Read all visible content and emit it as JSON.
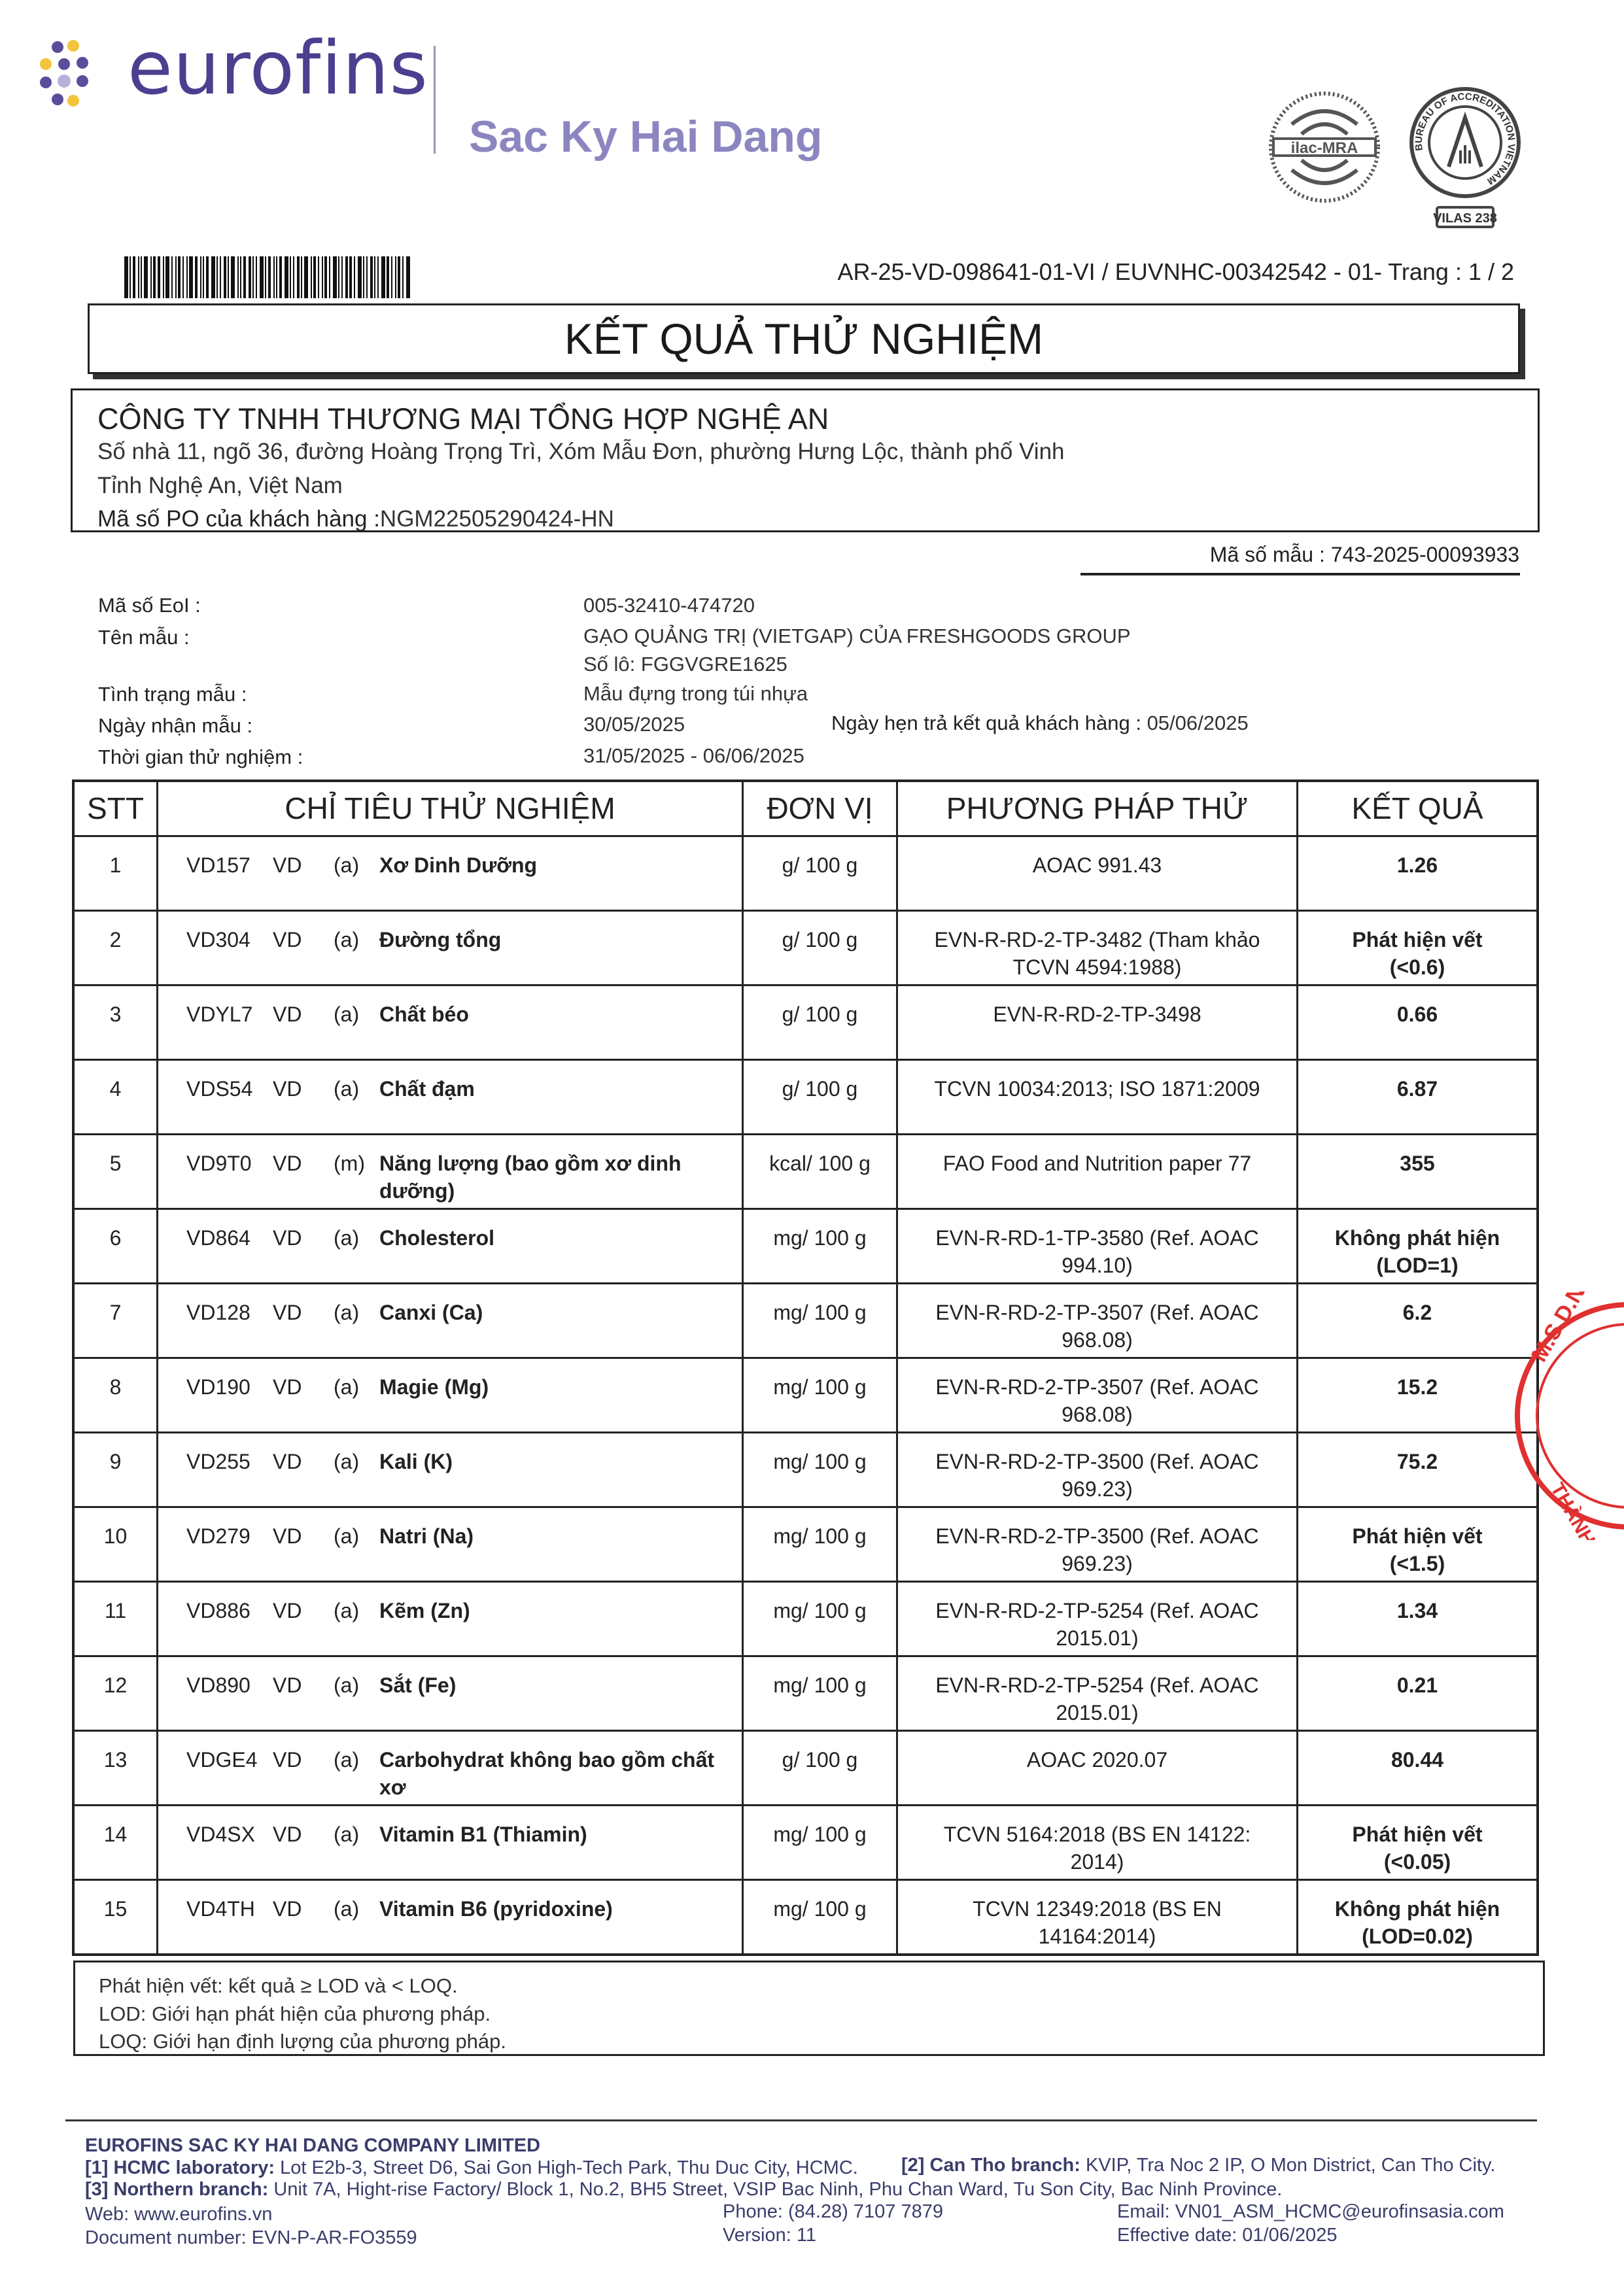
{
  "header": {
    "logo_text": "eurofins",
    "brand_sub": "Sac Ky Hai Dang",
    "accreditation": {
      "ilac": "ilac-MRA",
      "boa": "BUREAU OF ACCREDITATION VIETNAM",
      "vilas": "VILAS 238"
    },
    "reference": "AR-25-VD-098641-01-VI / EUVNHC-00342542 - 01- Trang : 1 / 2"
  },
  "title": "KẾT QUẢ THỬ NGHIỆM",
  "customer": {
    "name": "CÔNG TY TNHH THƯƠNG MẠI TỔNG HỢP NGHỆ AN",
    "address1": "Số nhà 11, ngõ 36, đường Hoàng Trọng Trì, Xóm Mẫu Đơn,  phường Hưng Lộc, thành phố Vinh",
    "address2": "Tỉnh Nghệ An, Việt Nam",
    "po_label": "Mã số PO của khách hàng :",
    "po_value": "NGM22505290424-HN"
  },
  "sample_code": "Mã số mẫu : 743-2025-00093933",
  "info": {
    "eol_label": "Mã số EoI :",
    "eol_value": "005-32410-474720",
    "name_label": "Tên mẫu :",
    "name_value": "GẠO QUẢNG TRỊ (VIETGAP) CỦA FRESHGOODS GROUP",
    "lot_value": "Số lô: FGGVGRE1625",
    "status_label": "Tình trạng mẫu :",
    "status_value": "Mẫu đựng trong túi nhựa",
    "received_label": "Ngày nhận mẫu :",
    "received_value": "30/05/2025",
    "due_label": "Ngày hẹn trả kết quả khách hàng :",
    "due_value": "05/06/2025",
    "period_label": "Thời gian thử nghiệm :",
    "period_value": "31/05/2025 - 06/06/2025"
  },
  "table": {
    "headers": [
      "STT",
      "CHỈ TIÊU THỬ NGHIỆM",
      "ĐƠN VỊ",
      "PHƯƠNG PHÁP THỬ",
      "KẾT QUẢ"
    ],
    "rows": [
      {
        "stt": "1",
        "code": "VD157",
        "lab": "VD",
        "acc": "(a)",
        "name": "Xơ Dinh Dưỡng",
        "unit": "g/ 100 g",
        "method": "AOAC 991.43",
        "result": "1.26"
      },
      {
        "stt": "2",
        "code": "VD304",
        "lab": "VD",
        "acc": "(a)",
        "name": "Đường tổng",
        "unit": "g/ 100 g",
        "method": "EVN-R-RD-2-TP-3482 (Tham khảo TCVN 4594:1988)",
        "result": "Phát hiện vết (<0.6)"
      },
      {
        "stt": "3",
        "code": "VDYL7",
        "lab": "VD",
        "acc": "(a)",
        "name": "Chất béo",
        "unit": "g/ 100 g",
        "method": "EVN-R-RD-2-TP-3498",
        "result": "0.66"
      },
      {
        "stt": "4",
        "code": "VDS54",
        "lab": "VD",
        "acc": "(a)",
        "name": "Chất đạm",
        "unit": "g/ 100 g",
        "method": "TCVN 10034:2013; ISO 1871:2009",
        "result": "6.87"
      },
      {
        "stt": "5",
        "code": "VD9T0",
        "lab": "VD",
        "acc": "(m)",
        "name": "Năng lượng (bao gồm xơ dinh dưỡng)",
        "unit": "kcal/ 100 g",
        "method": "FAO Food and Nutrition paper 77",
        "result": "355"
      },
      {
        "stt": "6",
        "code": "VD864",
        "lab": "VD",
        "acc": "(a)",
        "name": "Cholesterol",
        "unit": "mg/ 100 g",
        "method": "EVN-R-RD-1-TP-3580 (Ref. AOAC 994.10)",
        "result": "Không phát hiện (LOD=1)"
      },
      {
        "stt": "7",
        "code": "VD128",
        "lab": "VD",
        "acc": "(a)",
        "name": "Canxi (Ca)",
        "unit": "mg/ 100 g",
        "method": "EVN-R-RD-2-TP-3507 (Ref. AOAC 968.08)",
        "result": "6.2"
      },
      {
        "stt": "8",
        "code": "VD190",
        "lab": "VD",
        "acc": "(a)",
        "name": "Magie (Mg)",
        "unit": "mg/ 100 g",
        "method": "EVN-R-RD-2-TP-3507 (Ref. AOAC 968.08)",
        "result": "15.2"
      },
      {
        "stt": "9",
        "code": "VD255",
        "lab": "VD",
        "acc": "(a)",
        "name": "Kali (K)",
        "unit": "mg/ 100 g",
        "method": "EVN-R-RD-2-TP-3500 (Ref. AOAC 969.23)",
        "result": "75.2"
      },
      {
        "stt": "10",
        "code": "VD279",
        "lab": "VD",
        "acc": "(a)",
        "name": "Natri (Na)",
        "unit": "mg/ 100 g",
        "method": "EVN-R-RD-2-TP-3500 (Ref. AOAC 969.23)",
        "result": "Phát hiện vết (<1.5)"
      },
      {
        "stt": "11",
        "code": "VD886",
        "lab": "VD",
        "acc": "(a)",
        "name": "Kẽm (Zn)",
        "unit": "mg/ 100 g",
        "method": "EVN-R-RD-2-TP-5254 (Ref. AOAC 2015.01)",
        "result": "1.34"
      },
      {
        "stt": "12",
        "code": "VD890",
        "lab": "VD",
        "acc": "(a)",
        "name": "Sắt (Fe)",
        "unit": "mg/ 100 g",
        "method": "EVN-R-RD-2-TP-5254 (Ref. AOAC 2015.01)",
        "result": "0.21"
      },
      {
        "stt": "13",
        "code": "VDGE4",
        "lab": "VD",
        "acc": "(a)",
        "name": "Carbohydrat không bao gồm chất xơ",
        "unit": "g/ 100 g",
        "method": "AOAC 2020.07",
        "result": "80.44"
      },
      {
        "stt": "14",
        "code": "VD4SX",
        "lab": "VD",
        "acc": "(a)",
        "name": "Vitamin B1 (Thiamin)",
        "unit": "mg/ 100 g",
        "method": "TCVN 5164:2018 (BS EN 14122: 2014)",
        "result": "Phát hiện vết (<0.05)"
      },
      {
        "stt": "15",
        "code": "VD4TH",
        "lab": "VD",
        "acc": "(a)",
        "name": "Vitamin B6 (pyridoxine)",
        "unit": "mg/ 100 g",
        "method": "TCVN 12349:2018 (BS EN 14164:2014)",
        "result": "Không phát hiện (LOD=0.02)"
      }
    ]
  },
  "notes": [
    "Phát hiện vết: kết quả ≥ LOD và < LOQ.",
    "LOD: Giới hạn phát hiện của phương pháp.",
    "LOQ: Giới hạn định lượng của phương pháp."
  ],
  "stamp_text": "M.S.D.N THÀNH",
  "footer": {
    "company": "EUROFINS SAC KY HAI DANG COMPANY LIMITED",
    "b1_label": "[1] HCMC laboratory:",
    "b1_value": " Lot E2b-3, Street D6, Sai Gon High-Tech Park, Thu Duc City, HCMC.",
    "b2_label": "[2] Can Tho branch:",
    "b2_value": " KVIP, Tra Noc 2 IP, O Mon District, Can Tho City.",
    "b3_label": "[3]  Northern branch:",
    "b3_value": " Unit 7A, Hight-rise Factory/ Block 1, No.2, BH5 Street, VSIP Bac Ninh, Phu Chan Ward, Tu Son City, Bac Ninh Province.",
    "web": "Web: www.eurofins.vn",
    "phone": "Phone: (84.28) 7107 7879",
    "email": "Email: VN01_ASM_HCMC@eurofinsasia.com",
    "docnum": "Document number: EVN-P-AR-FO3559",
    "version": "Version: 11",
    "effective": "Effective date: 01/06/2025"
  },
  "colors": {
    "brand": "#4b3f8f",
    "brand_light": "#8c86c0",
    "accent_yellow": "#f2c53d",
    "stamp_red": "#e03030"
  }
}
